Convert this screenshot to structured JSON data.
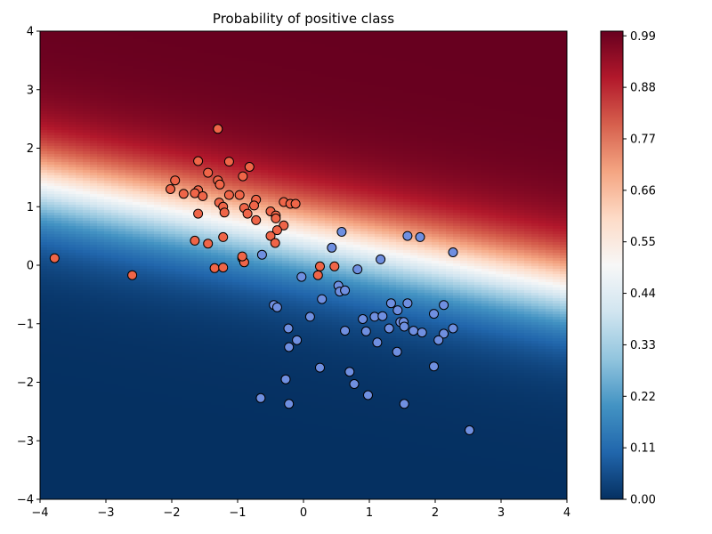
{
  "chart_data": {
    "type": "scatter",
    "title": "Probability of positive class",
    "xlim": [
      -4,
      4
    ],
    "ylim": [
      -4,
      4
    ],
    "x_ticks": [
      "−4",
      "−3",
      "−2",
      "−1",
      "0",
      "1",
      "2",
      "3",
      "4"
    ],
    "y_ticks": [
      "−4",
      "−3",
      "−2",
      "−1",
      "0",
      "1",
      "2",
      "3",
      "4"
    ],
    "background": {
      "kind": "probability-heatmap",
      "colormap": "RdBu_r",
      "decision_boundary": {
        "slope": -0.22,
        "intercept": 0.5
      },
      "steepness": 2.2
    },
    "colorbar": {
      "range": [
        0,
        1
      ],
      "ticks": [
        "0.00",
        "0.11",
        "0.22",
        "0.33",
        "0.44",
        "0.55",
        "0.66",
        "0.77",
        "0.88",
        "0.99"
      ]
    },
    "colors": {
      "positive_point": "#ef6548",
      "negative_point": "#6f8fe0",
      "point_edge": "#000000"
    },
    "series": [
      {
        "class": "positive",
        "points": [
          [
            -3.78,
            0.12
          ],
          [
            -2.6,
            -0.17
          ],
          [
            -1.3,
            2.33
          ],
          [
            -1.6,
            1.78
          ],
          [
            -1.13,
            1.77
          ],
          [
            -0.82,
            1.68
          ],
          [
            -1.45,
            1.58
          ],
          [
            -0.92,
            1.52
          ],
          [
            -1.95,
            1.45
          ],
          [
            -1.3,
            1.45
          ],
          [
            -1.27,
            1.38
          ],
          [
            -2.02,
            1.3
          ],
          [
            -1.6,
            1.28
          ],
          [
            -1.65,
            1.23
          ],
          [
            -1.82,
            1.22
          ],
          [
            -1.53,
            1.18
          ],
          [
            -1.13,
            1.2
          ],
          [
            -0.97,
            1.2
          ],
          [
            -0.72,
            1.12
          ],
          [
            -0.3,
            1.08
          ],
          [
            -0.2,
            1.05
          ],
          [
            -0.12,
            1.05
          ],
          [
            -1.28,
            1.07
          ],
          [
            -1.22,
            1.0
          ],
          [
            -0.9,
            0.98
          ],
          [
            -0.75,
            1.02
          ],
          [
            -0.5,
            0.92
          ],
          [
            -0.42,
            0.85
          ],
          [
            -1.6,
            0.88
          ],
          [
            -1.2,
            0.9
          ],
          [
            -0.85,
            0.88
          ],
          [
            -0.42,
            0.8
          ],
          [
            -0.72,
            0.77
          ],
          [
            -0.3,
            0.68
          ],
          [
            -0.4,
            0.6
          ],
          [
            -0.5,
            0.5
          ],
          [
            -1.22,
            0.48
          ],
          [
            -0.43,
            0.38
          ],
          [
            -1.65,
            0.42
          ],
          [
            -1.45,
            0.37
          ],
          [
            -0.93,
            0.12
          ],
          [
            -0.9,
            0.05
          ],
          [
            -0.93,
            0.15
          ],
          [
            -1.35,
            -0.05
          ],
          [
            -1.22,
            -0.04
          ],
          [
            0.25,
            -0.02
          ],
          [
            0.47,
            -0.02
          ],
          [
            0.22,
            -0.17
          ]
        ]
      },
      {
        "class": "negative",
        "points": [
          [
            0.58,
            0.57
          ],
          [
            1.58,
            0.5
          ],
          [
            1.77,
            0.48
          ],
          [
            2.27,
            0.22
          ],
          [
            0.43,
            0.3
          ],
          [
            1.17,
            0.1
          ],
          [
            -0.63,
            0.18
          ],
          [
            0.82,
            -0.07
          ],
          [
            -0.03,
            -0.2
          ],
          [
            0.53,
            -0.35
          ],
          [
            0.55,
            -0.45
          ],
          [
            0.63,
            -0.43
          ],
          [
            0.28,
            -0.58
          ],
          [
            1.33,
            -0.65
          ],
          [
            1.58,
            -0.65
          ],
          [
            2.13,
            -0.68
          ],
          [
            -0.45,
            -0.68
          ],
          [
            -0.4,
            -0.72
          ],
          [
            1.43,
            -0.77
          ],
          [
            1.98,
            -0.83
          ],
          [
            0.1,
            -0.88
          ],
          [
            0.9,
            -0.92
          ],
          [
            1.08,
            -0.88
          ],
          [
            1.2,
            -0.87
          ],
          [
            1.47,
            -0.97
          ],
          [
            1.52,
            -0.97
          ],
          [
            1.53,
            -1.05
          ],
          [
            1.3,
            -1.08
          ],
          [
            1.67,
            -1.12
          ],
          [
            1.8,
            -1.15
          ],
          [
            2.27,
            -1.08
          ],
          [
            2.13,
            -1.17
          ],
          [
            -0.23,
            -1.08
          ],
          [
            0.63,
            -1.12
          ],
          [
            0.95,
            -1.13
          ],
          [
            -0.1,
            -1.28
          ],
          [
            2.05,
            -1.28
          ],
          [
            1.12,
            -1.32
          ],
          [
            -0.22,
            -1.4
          ],
          [
            1.42,
            -1.48
          ],
          [
            0.25,
            -1.75
          ],
          [
            0.7,
            -1.82
          ],
          [
            1.98,
            -1.73
          ],
          [
            -0.27,
            -1.95
          ],
          [
            0.77,
            -2.03
          ],
          [
            0.98,
            -2.22
          ],
          [
            -0.65,
            -2.27
          ],
          [
            -0.22,
            -2.37
          ],
          [
            1.53,
            -2.37
          ],
          [
            2.52,
            -2.82
          ]
        ]
      }
    ]
  }
}
